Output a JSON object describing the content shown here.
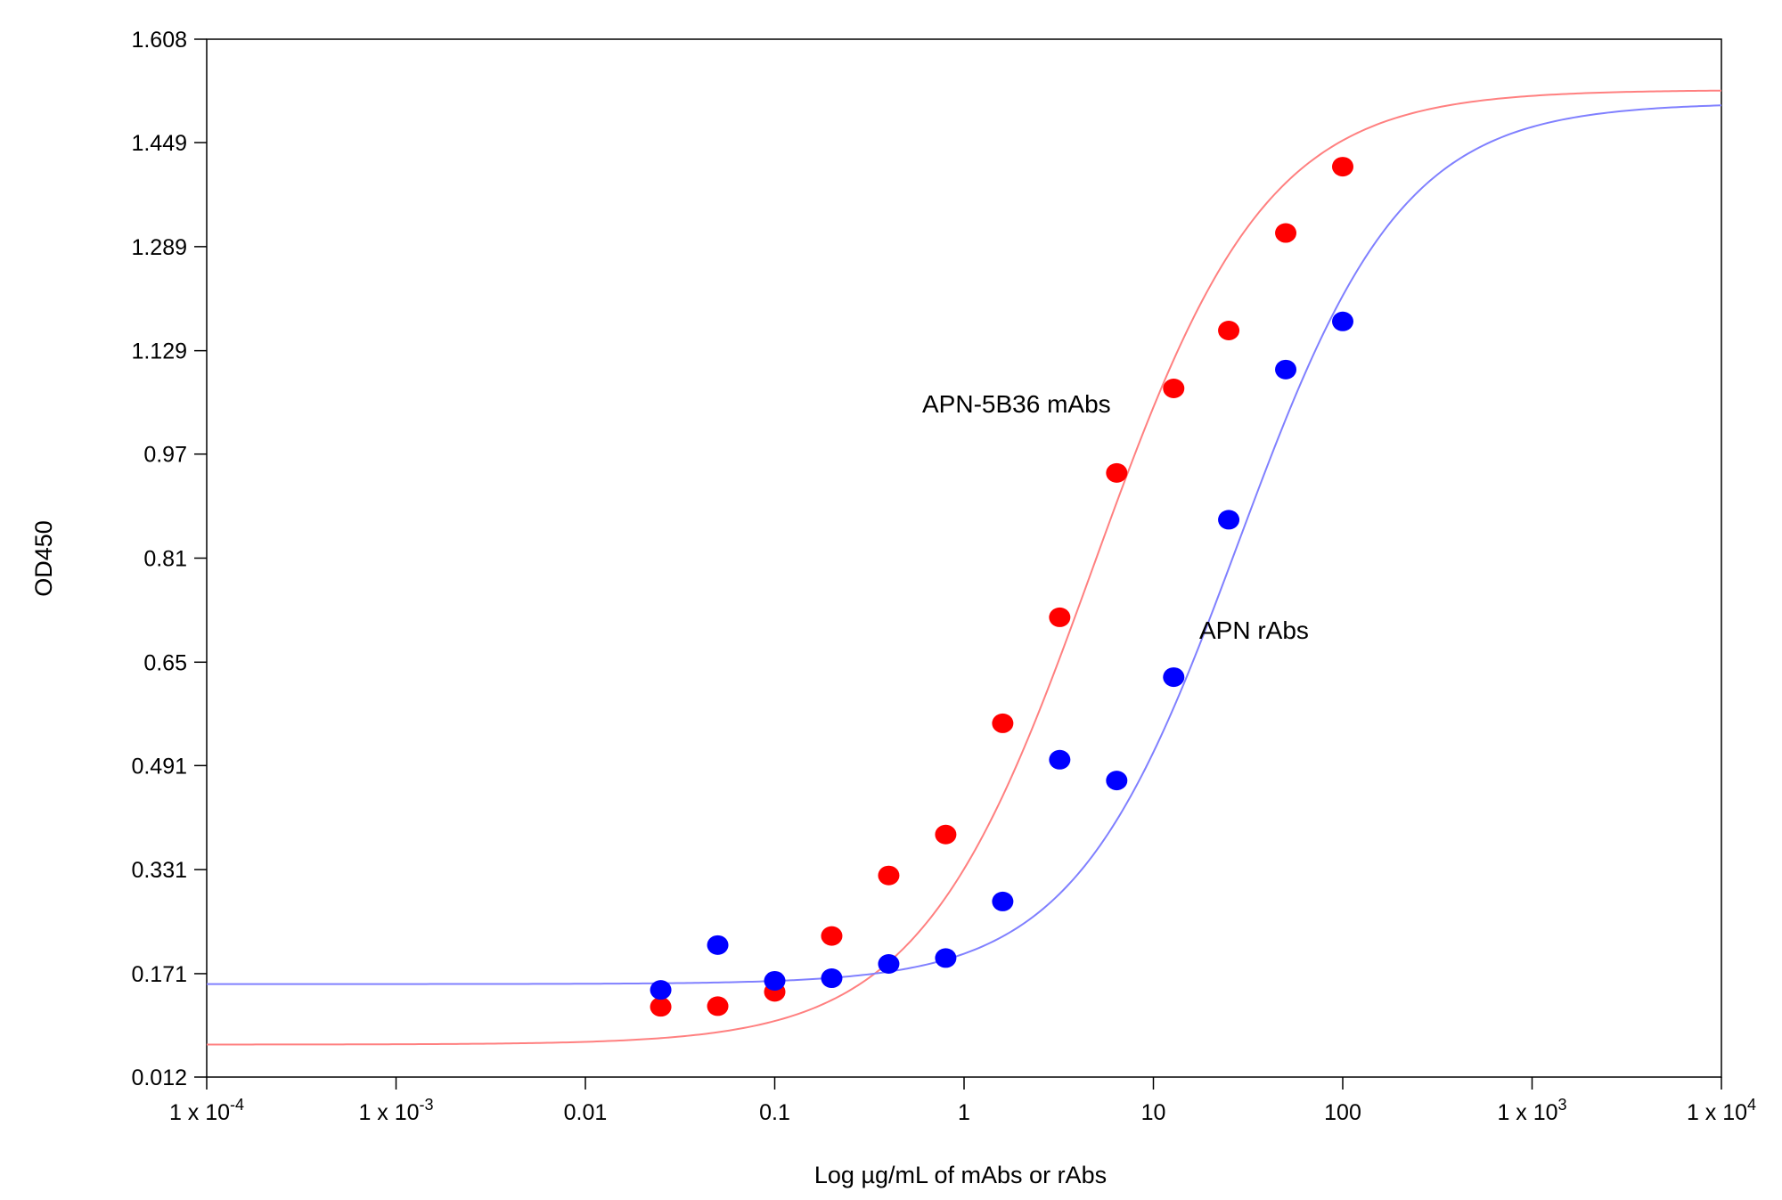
{
  "chart_data": {
    "type": "scatter",
    "xscale": "log",
    "xlabel": "Log µg/mL of mAbs or rAbs",
    "ylabel": "OD450",
    "xlim": [
      0.0001,
      10000
    ],
    "ylim": [
      0.012,
      1.608
    ],
    "xticks": [
      {
        "value": 0.0001,
        "base": "1 x 10",
        "exp": "-4"
      },
      {
        "value": 0.001,
        "base": "1 x 10",
        "exp": "-3"
      },
      {
        "value": 0.01,
        "base": "0.01",
        "exp": ""
      },
      {
        "value": 0.1,
        "base": "0.1",
        "exp": ""
      },
      {
        "value": 1,
        "base": "1",
        "exp": ""
      },
      {
        "value": 10,
        "base": "10",
        "exp": ""
      },
      {
        "value": 100,
        "base": "100",
        "exp": ""
      },
      {
        "value": 1000,
        "base": "1 x 10",
        "exp": "3"
      },
      {
        "value": 10000,
        "base": "1 x 10",
        "exp": "4"
      }
    ],
    "yticks": [
      {
        "value": 0.012,
        "label": "0.012"
      },
      {
        "value": 0.171,
        "label": "0.171"
      },
      {
        "value": 0.331,
        "label": "0.331"
      },
      {
        "value": 0.491,
        "label": "0.491"
      },
      {
        "value": 0.65,
        "label": "0.65"
      },
      {
        "value": 0.81,
        "label": "0.81"
      },
      {
        "value": 0.97,
        "label": "0.97"
      },
      {
        "value": 1.129,
        "label": "1.129"
      },
      {
        "value": 1.289,
        "label": "1.289"
      },
      {
        "value": 1.449,
        "label": "1.449"
      },
      {
        "value": 1.608,
        "label": "1.608"
      }
    ],
    "grid": false,
    "series": [
      {
        "name": "APN-5B36 mAbs",
        "color": "#ff0000",
        "curve_color": "#ff8080",
        "x": [
          0.025,
          0.05,
          0.1,
          0.2,
          0.4,
          0.8,
          1.6,
          3.2,
          6.4,
          12.8,
          25,
          50,
          100
        ],
        "y": [
          0.12,
          0.121,
          0.143,
          0.229,
          0.322,
          0.385,
          0.556,
          0.719,
          0.941,
          1.071,
          1.16,
          1.31,
          1.412
        ],
        "fit": {
          "bottom": 0.062,
          "top": 1.53,
          "ec50": 4.8,
          "hill": 0.95
        }
      },
      {
        "name": "APN rAbs",
        "color": "#0000ff",
        "curve_color": "#8080ff",
        "x": [
          0.025,
          0.05,
          0.1,
          0.2,
          0.4,
          0.8,
          1.6,
          3.2,
          6.4,
          12.8,
          25,
          50,
          100
        ],
        "y": [
          0.146,
          0.215,
          0.16,
          0.164,
          0.186,
          0.195,
          0.282,
          0.5,
          0.468,
          0.627,
          0.869,
          1.1,
          1.174
        ],
        "fit": {
          "bottom": 0.155,
          "top": 1.51,
          "ec50": 28,
          "hill": 1.0
        }
      }
    ],
    "annotations": [
      {
        "text": "APN-5B36 mAbs",
        "series": 0
      },
      {
        "text": "APN rAbs",
        "series": 1
      }
    ]
  }
}
